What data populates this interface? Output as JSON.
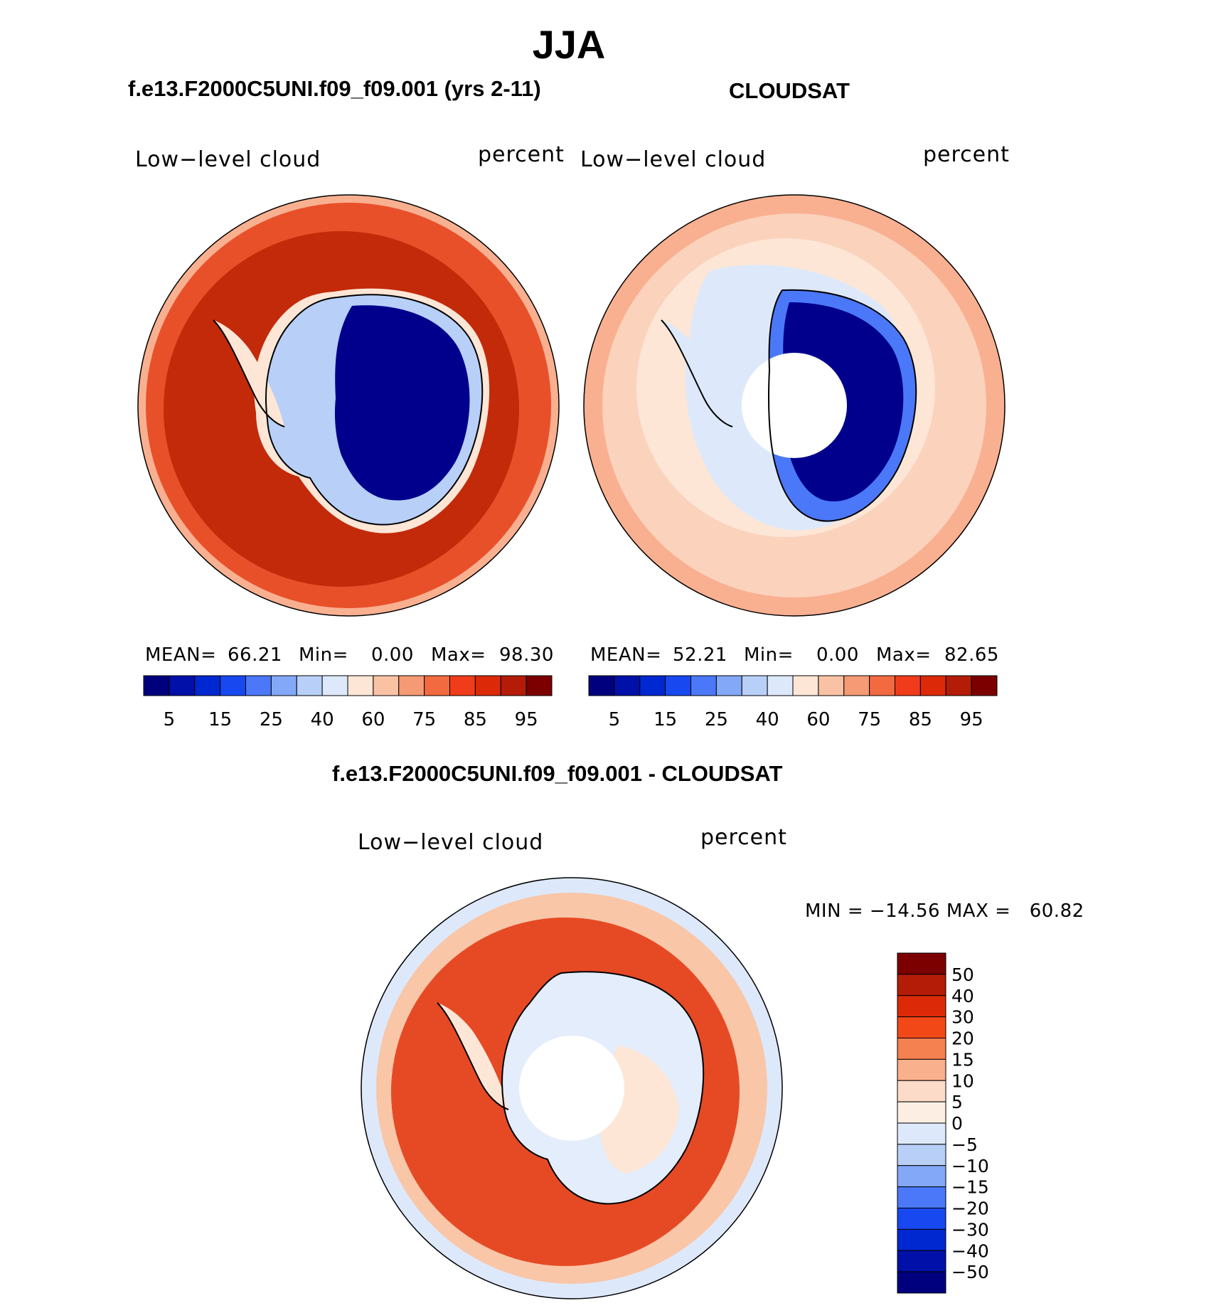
{
  "title": "JJA",
  "panels": [
    {
      "title": "f.e13.F2000C5UNI.f09_f09.001 (yrs 2-11)",
      "variable": "Low−level cloud",
      "units": "percent",
      "stats": {
        "mean_label": "MEAN=",
        "mean": "66.21",
        "min_label": "Min=",
        "min": "0.00",
        "max_label": "Max=",
        "max": "98.30"
      }
    },
    {
      "title": "CLOUDSAT",
      "variable": "Low−level cloud",
      "units": "percent",
      "stats": {
        "mean_label": "MEAN=",
        "mean": "52.21",
        "min_label": "Min=",
        "min": "0.00",
        "max_label": "Max=",
        "max": "82.65"
      }
    }
  ],
  "difference": {
    "title": "f.e13.F2000C5UNI.f09_f09.001 - CLOUDSAT",
    "variable": "Low−level cloud",
    "units": "percent",
    "min_max_text": "MIN = −14.56 MAX =   60.82"
  },
  "abs_colorbar": {
    "tick_labels": [
      "5",
      "15",
      "25",
      "40",
      "60",
      "75",
      "85",
      "95"
    ],
    "colors": [
      "#00007f",
      "#0010a8",
      "#0028d0",
      "#1848f0",
      "#4a78f8",
      "#84a8f8",
      "#b8cff8",
      "#dde9fb",
      "#fde6d6",
      "#f9c2a4",
      "#f59a74",
      "#f26a40",
      "#f03c1a",
      "#dc2a08",
      "#b41c08",
      "#7d0000"
    ]
  },
  "diff_colorbar": {
    "labels_top_to_bottom": [
      "50",
      "40",
      "30",
      "20",
      "15",
      "10",
      "5",
      "0",
      "−5",
      "−10",
      "−15",
      "−20",
      "−30",
      "−40",
      "−50"
    ],
    "colors_top_to_bottom": [
      "#7d0000",
      "#b41c08",
      "#dc2a08",
      "#f24818",
      "#f58050",
      "#f9b08c",
      "#fcdcc8",
      "#fdeee4",
      "#dde9fb",
      "#b8cff8",
      "#84a8f8",
      "#4a78f8",
      "#1848f0",
      "#0028d0",
      "#0010a8",
      "#00007f"
    ]
  },
  "colors": {
    "ocean_model": "#e03c1c",
    "ocean_model_inner": "#b8240a",
    "ocean_obs": "#fbd2bc",
    "ocean_obs_outer": "#f9b090",
    "antarctica_model": "#00008c",
    "antarctica_obs": "#00008c",
    "ocean_diff": "#e64a24",
    "ocean_diff_outer": "#f9c6a8",
    "ice_diff": "#e4edfb",
    "missing": "#ffffff"
  },
  "icons": [
    "polar-stereographic-map",
    "coastline",
    "colorbar"
  ]
}
